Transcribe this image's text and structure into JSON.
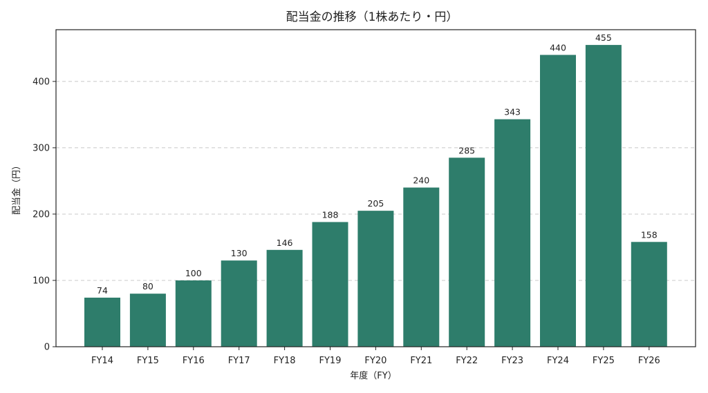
{
  "chart_data": {
    "type": "bar",
    "title": "配当金の推移（1株あたり・円）",
    "xlabel": "年度（FY）",
    "ylabel": "配当金（円）",
    "categories": [
      "FY14",
      "FY15",
      "FY16",
      "FY17",
      "FY18",
      "FY19",
      "FY20",
      "FY21",
      "FY22",
      "FY23",
      "FY24",
      "FY25",
      "FY26"
    ],
    "values": [
      74,
      80,
      100,
      130,
      146,
      188,
      205,
      240,
      285,
      343,
      440,
      455,
      158
    ],
    "data_labels": [
      "74",
      "80",
      "100",
      "130",
      "146",
      "188",
      "205",
      "240",
      "285",
      "343",
      "440",
      "455",
      "158"
    ],
    "ylim": [
      0,
      478
    ],
    "yticks": [
      0,
      100,
      200,
      300,
      400
    ],
    "grid": "y-dashed",
    "bar_color": "#2e7d6b"
  }
}
